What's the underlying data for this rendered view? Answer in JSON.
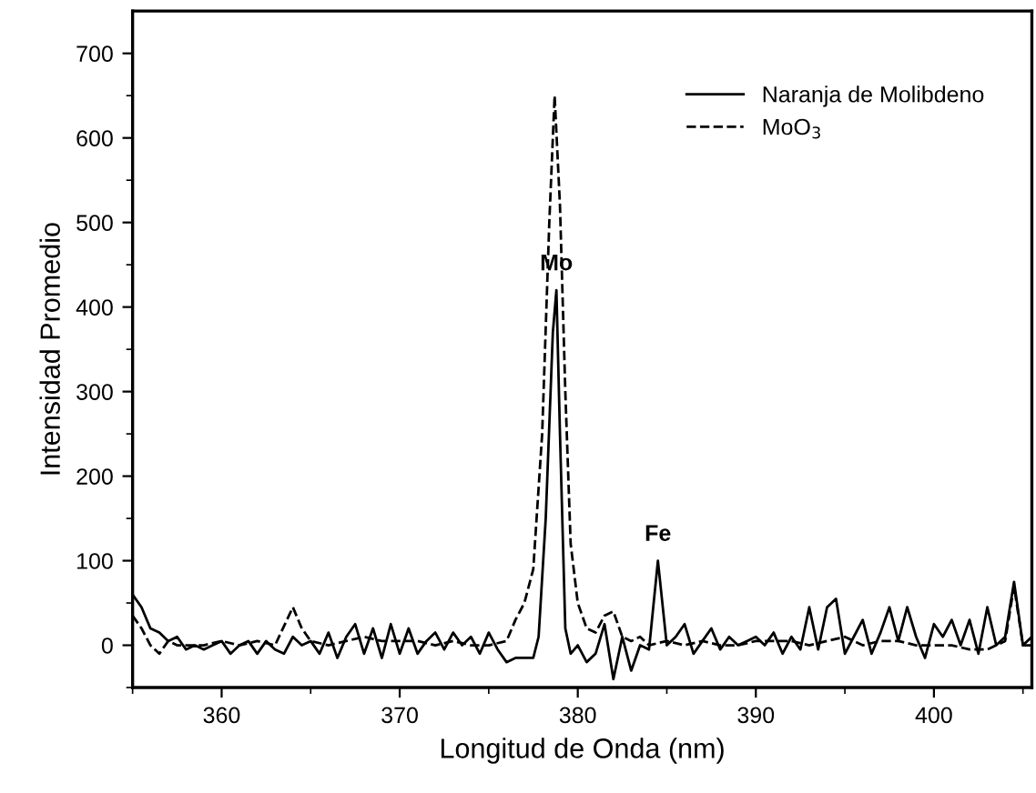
{
  "chart_data": {
    "type": "line",
    "xlabel": "Longitud de Onda (nm)",
    "ylabel": "Intensidad Promedio",
    "xlim": [
      355,
      405.5
    ],
    "ylim": [
      -50,
      750
    ],
    "xticks": [
      {
        "value": 355,
        "label": null
      },
      360,
      {
        "value": 365,
        "label": null
      },
      370,
      {
        "value": 375,
        "label": null
      },
      380,
      {
        "value": 385,
        "label": null
      },
      390,
      {
        "value": 395,
        "label": null
      },
      400,
      {
        "value": 405,
        "label": null
      }
    ],
    "yticks": [
      {
        "value": -50,
        "label": null
      },
      0,
      {
        "value": 50,
        "label": null
      },
      100,
      {
        "value": 150,
        "label": null
      },
      200,
      {
        "value": 250,
        "label": null
      },
      300,
      {
        "value": 350,
        "label": null
      },
      400,
      {
        "value": 450,
        "label": null
      },
      500,
      {
        "value": 550,
        "label": null
      },
      600,
      {
        "value": 650,
        "label": null
      },
      700
    ],
    "grid": false,
    "legend": "top right",
    "marker": "none",
    "annotations": [
      {
        "text": "Mo",
        "x": 378.8,
        "y": 420
      },
      {
        "text": "Fe",
        "x": 384.5,
        "y": 100
      }
    ],
    "series": [
      {
        "name": "Naranja de Molibdeno",
        "color": "#000000",
        "line_style": "solid",
        "x": [
          355,
          355.5,
          356,
          356.5,
          357,
          357.5,
          358,
          358.5,
          359,
          359.5,
          360,
          360.5,
          361,
          361.5,
          362,
          362.5,
          363,
          363.5,
          364,
          364.5,
          365,
          365.5,
          366,
          366.5,
          367,
          367.5,
          368,
          368.5,
          369,
          369.5,
          370,
          370.5,
          371,
          371.5,
          372,
          372.5,
          373,
          373.5,
          374,
          374.5,
          375,
          375.5,
          376,
          376.5,
          377,
          377.5,
          377.8,
          378.2,
          378.6,
          378.8,
          379.0,
          379.3,
          379.6,
          380,
          380.5,
          381,
          381.5,
          382,
          382.5,
          383,
          383.5,
          384,
          384.5,
          385,
          385.5,
          386,
          386.5,
          387,
          387.5,
          388,
          388.5,
          389,
          389.5,
          390,
          390.5,
          391,
          391.5,
          392,
          392.5,
          393,
          393.5,
          394,
          394.5,
          395,
          395.5,
          396,
          396.5,
          397,
          397.5,
          398,
          398.5,
          399,
          399.5,
          400,
          400.5,
          401,
          401.5,
          402,
          402.5,
          403,
          403.5,
          404,
          404.5,
          405,
          405.5
        ],
        "values": [
          60,
          45,
          20,
          15,
          5,
          10,
          -5,
          0,
          -5,
          0,
          5,
          -10,
          0,
          5,
          -10,
          5,
          -5,
          -10,
          10,
          0,
          5,
          -10,
          15,
          -15,
          10,
          25,
          -10,
          20,
          -15,
          25,
          -10,
          20,
          -10,
          5,
          15,
          -5,
          15,
          0,
          10,
          -10,
          15,
          -5,
          -20,
          -15,
          -15,
          -15,
          10,
          150,
          370,
          420,
          250,
          20,
          -10,
          0,
          -20,
          -10,
          25,
          -40,
          10,
          -30,
          0,
          -5,
          100,
          0,
          10,
          25,
          -10,
          5,
          20,
          -5,
          10,
          0,
          5,
          10,
          0,
          15,
          -10,
          10,
          -5,
          45,
          -5,
          45,
          55,
          -10,
          10,
          30,
          -10,
          15,
          45,
          5,
          45,
          10,
          -15,
          25,
          10,
          30,
          0,
          30,
          -10,
          45,
          0,
          10,
          75,
          0,
          10
        ]
      },
      {
        "name": "MoO$_{3}$",
        "color": "#000000",
        "line_style": "dashed",
        "x": [
          355,
          355.5,
          356,
          356.5,
          357,
          357.5,
          358,
          359,
          360,
          361,
          362,
          363,
          364,
          364.5,
          365,
          366,
          367,
          368,
          369,
          370,
          371,
          372,
          373,
          374,
          375,
          376,
          376.5,
          377,
          377.5,
          378,
          378.4,
          378.7,
          379,
          379.3,
          379.6,
          380,
          380.5,
          381,
          381.5,
          382,
          382.5,
          383,
          383.5,
          384,
          385,
          386,
          387,
          388,
          389,
          390,
          391,
          392,
          393,
          394,
          395,
          396,
          397,
          398,
          399,
          400,
          401,
          402,
          403,
          404,
          404.5,
          405,
          405.5
        ],
        "values": [
          35,
          20,
          0,
          -10,
          5,
          0,
          0,
          0,
          5,
          0,
          5,
          0,
          45,
          20,
          5,
          0,
          5,
          10,
          5,
          5,
          5,
          0,
          5,
          0,
          0,
          5,
          30,
          50,
          90,
          250,
          500,
          650,
          520,
          300,
          120,
          50,
          20,
          15,
          35,
          40,
          10,
          5,
          10,
          0,
          5,
          0,
          5,
          0,
          0,
          5,
          5,
          5,
          0,
          5,
          10,
          0,
          5,
          5,
          0,
          0,
          0,
          -5,
          -5,
          5,
          70,
          0,
          0
        ]
      }
    ]
  }
}
